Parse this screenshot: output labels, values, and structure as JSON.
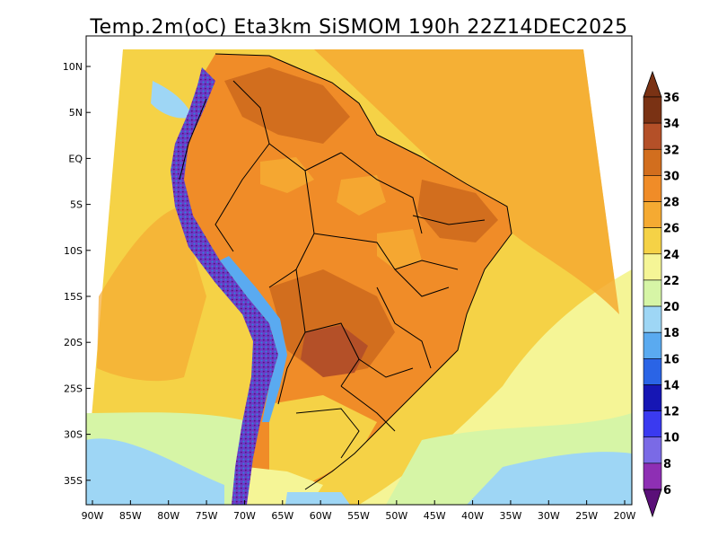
{
  "title": "Temp.2m(oC) Eta3km SiSMOM 190h 22Z14DEC2025",
  "map": {
    "variable": "Temp.2m(oC)",
    "model": "Eta3km SiSMOM",
    "forecast_hour": "190h",
    "valid_time": "22Z14DEC2025",
    "lat_labels": [
      "10N",
      "5N",
      "EQ",
      "5S",
      "10S",
      "15S",
      "20S",
      "25S",
      "30S",
      "35S"
    ],
    "lon_labels": [
      "90W",
      "85W",
      "80W",
      "75W",
      "70W",
      "65W",
      "60W",
      "55W",
      "50W",
      "45W",
      "40W",
      "35W",
      "30W",
      "25W",
      "20W"
    ]
  },
  "colorbar": {
    "labels": [
      "6",
      "8",
      "10",
      "12",
      "14",
      "16",
      "18",
      "20",
      "22",
      "24",
      "26",
      "28",
      "30",
      "32",
      "34",
      "36"
    ],
    "colors": [
      "#5a0f78",
      "#8e2fb4",
      "#7a6ae6",
      "#3a3af0",
      "#1616b4",
      "#2a64e6",
      "#5aaaf0",
      "#9ed6f5",
      "#d6f5a6",
      "#f5f596",
      "#f5d246",
      "#f5aa32",
      "#f08c28",
      "#d26e1e",
      "#b45028",
      "#7a3214"
    ]
  }
}
